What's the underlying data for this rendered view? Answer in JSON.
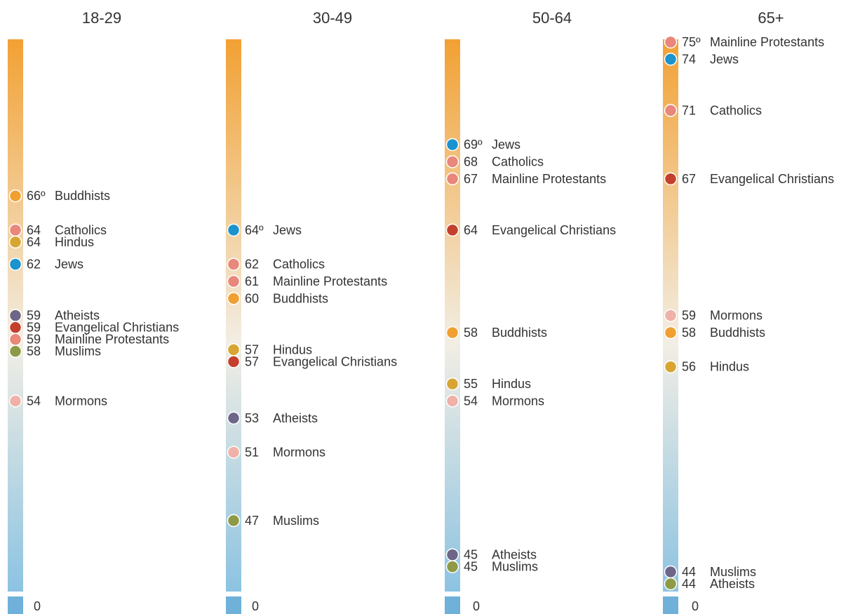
{
  "chart_data": [
    {
      "type": "scatter",
      "title": "18-29",
      "ylim": [
        44,
        75
      ],
      "zero_label": "0",
      "points": [
        {
          "value": 66,
          "value_label": "66º",
          "group": "Buddhists",
          "color": "#F0A030"
        },
        {
          "value": 64,
          "value_label": "64",
          "group": "Catholics",
          "color": "#E8877A"
        },
        {
          "value": 64,
          "value_label": "64",
          "group": "Hindus",
          "color": "#D9A532"
        },
        {
          "value": 62,
          "value_label": "62",
          "group": "Jews",
          "color": "#1A93CF"
        },
        {
          "value": 59,
          "value_label": "59",
          "group": "Atheists",
          "color": "#6E6688"
        },
        {
          "value": 59,
          "value_label": "59",
          "group": "Evangelical Christians",
          "color": "#C4402C"
        },
        {
          "value": 59,
          "value_label": "59",
          "group": "Mainline Protestants",
          "color": "#E8877A"
        },
        {
          "value": 58,
          "value_label": "58",
          "group": "Muslims",
          "color": "#8E9A46"
        },
        {
          "value": 54,
          "value_label": "54",
          "group": "Mormons",
          "color": "#EFB1A8"
        }
      ]
    },
    {
      "type": "scatter",
      "title": "30-49",
      "ylim": [
        44,
        75
      ],
      "zero_label": "0",
      "points": [
        {
          "value": 64,
          "value_label": "64º",
          "group": "Jews",
          "color": "#1A93CF"
        },
        {
          "value": 62,
          "value_label": "62",
          "group": "Catholics",
          "color": "#E8877A"
        },
        {
          "value": 61,
          "value_label": "61",
          "group": "Mainline Protestants",
          "color": "#E8877A"
        },
        {
          "value": 60,
          "value_label": "60",
          "group": "Buddhists",
          "color": "#F0A030"
        },
        {
          "value": 57,
          "value_label": "57",
          "group": "Hindus",
          "color": "#D9A532"
        },
        {
          "value": 57,
          "value_label": "57",
          "group": "Evangelical Christians",
          "color": "#C4402C"
        },
        {
          "value": 53,
          "value_label": "53",
          "group": "Atheists",
          "color": "#6E6688"
        },
        {
          "value": 51,
          "value_label": "51",
          "group": "Mormons",
          "color": "#EFB1A8"
        },
        {
          "value": 47,
          "value_label": "47",
          "group": "Muslims",
          "color": "#8E9A46"
        }
      ]
    },
    {
      "type": "scatter",
      "title": "50-64",
      "ylim": [
        44,
        75
      ],
      "zero_label": "0",
      "points": [
        {
          "value": 69,
          "value_label": "69º",
          "group": "Jews",
          "color": "#1A93CF"
        },
        {
          "value": 68,
          "value_label": "68",
          "group": "Catholics",
          "color": "#E8877A"
        },
        {
          "value": 67,
          "value_label": "67",
          "group": "Mainline Protestants",
          "color": "#E8877A"
        },
        {
          "value": 64,
          "value_label": "64",
          "group": "Evangelical Christians",
          "color": "#C4402C"
        },
        {
          "value": 58,
          "value_label": "58",
          "group": "Buddhists",
          "color": "#F0A030"
        },
        {
          "value": 55,
          "value_label": "55",
          "group": "Hindus",
          "color": "#D9A532"
        },
        {
          "value": 54,
          "value_label": "54",
          "group": "Mormons",
          "color": "#EFB1A8"
        },
        {
          "value": 45,
          "value_label": "45",
          "group": "Atheists",
          "color": "#6E6688"
        },
        {
          "value": 45,
          "value_label": "45",
          "group": "Muslims",
          "color": "#8E9A46"
        }
      ]
    },
    {
      "type": "scatter",
      "title": "65+",
      "ylim": [
        44,
        75
      ],
      "zero_label": "0",
      "points": [
        {
          "value": 75,
          "value_label": "75º",
          "group": "Mainline Protestants",
          "color": "#E8877A"
        },
        {
          "value": 74,
          "value_label": "74",
          "group": "Jews",
          "color": "#1A93CF"
        },
        {
          "value": 71,
          "value_label": "71",
          "group": "Catholics",
          "color": "#E8877A"
        },
        {
          "value": 67,
          "value_label": "67",
          "group": "Evangelical Christians",
          "color": "#C4402C"
        },
        {
          "value": 59,
          "value_label": "59",
          "group": "Mormons",
          "color": "#EFB1A8"
        },
        {
          "value": 58,
          "value_label": "58",
          "group": "Buddhists",
          "color": "#F0A030"
        },
        {
          "value": 56,
          "value_label": "56",
          "group": "Hindus",
          "color": "#D9A532"
        },
        {
          "value": 44,
          "value_label": "44",
          "group": "Muslims",
          "color": "#6E6688"
        },
        {
          "value": 44,
          "value_label": "44",
          "group": "Atheists",
          "color": "#8E9A46"
        }
      ]
    }
  ],
  "colors": {
    "scale_top": "#F2A133",
    "scale_mid": "#F2EEE4",
    "scale_bottom": "#8CC3E2",
    "zero_block": "#6FB1D9"
  }
}
